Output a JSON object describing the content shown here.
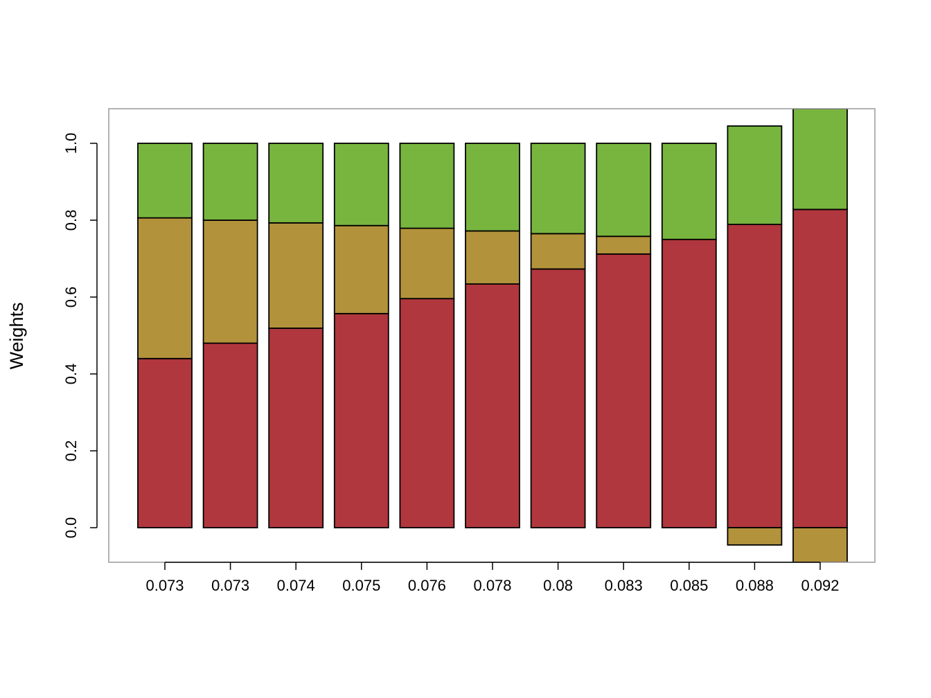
{
  "chart_data": {
    "type": "bar",
    "stacked": true,
    "title": "",
    "xlabel": "",
    "ylabel": "Weights",
    "ylim": [
      -0.09,
      1.09
    ],
    "yticks": [
      0.0,
      0.2,
      0.4,
      0.6,
      0.8,
      1.0
    ],
    "ytick_labels": [
      "0.0",
      "0.2",
      "0.4",
      "0.6",
      "0.8",
      "1.0"
    ],
    "grid": false,
    "legend": "none",
    "categories": [
      "0.073",
      "0.073",
      "0.074",
      "0.075",
      "0.076",
      "0.078",
      "0.08",
      "0.083",
      "0.085",
      "0.088",
      "0.092"
    ],
    "series": [
      {
        "color": "#B0373D",
        "values": [
          0.44,
          0.48,
          0.519,
          0.557,
          0.596,
          0.634,
          0.673,
          0.712,
          0.75,
          0.789,
          0.828
        ]
      },
      {
        "color": "#B3923C",
        "values": [
          0.366,
          0.32,
          0.274,
          0.229,
          0.183,
          0.138,
          0.092,
          0.046,
          0.0,
          -0.045,
          -0.09
        ]
      },
      {
        "color": "#78B53F",
        "values": [
          0.194,
          0.2,
          0.207,
          0.214,
          0.221,
          0.228,
          0.235,
          0.242,
          0.25,
          0.256,
          0.262
        ]
      }
    ]
  }
}
